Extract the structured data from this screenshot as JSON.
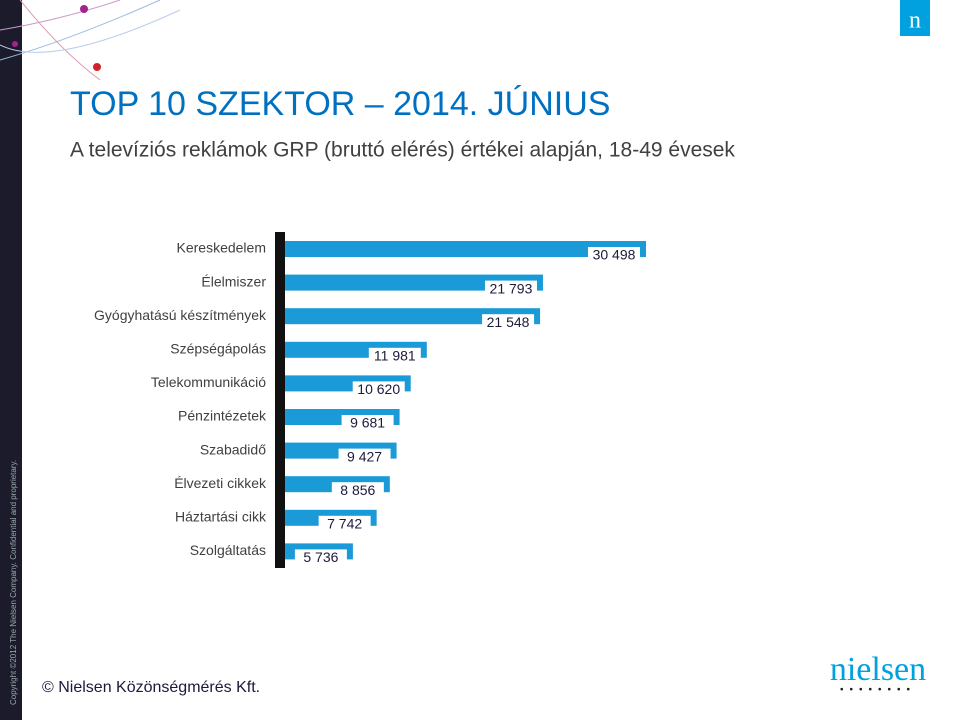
{
  "chart_data": {
    "type": "bar",
    "orientation": "horizontal",
    "title": "TOP 10 SZEKTOR – 2014. JÚNIUS",
    "subtitle": "A televíziós reklámok GRP (bruttó elérés) értékei alapján, 18-49 évesek",
    "categories": [
      "Kereskedelem",
      "Élelmiszer",
      "Gyógyhatású készítmények",
      "Szépségápolás",
      "Telekommunikáció",
      "Pénzintézetek",
      "Szabadidő",
      "Élvezeti cikkek",
      "Háztartási cikk",
      "Szolgáltatás"
    ],
    "values": [
      30498,
      21793,
      21548,
      11981,
      10620,
      9681,
      9427,
      8856,
      7742,
      5736
    ],
    "value_labels": [
      "30 498",
      "21 793",
      "21 548",
      "11 981",
      "10 620",
      "9 681",
      "9 427",
      "8 856",
      "7 742",
      "5 736"
    ],
    "color": "#1a9ad6"
  },
  "footer": "© Nielsen Közönségmérés Kft.",
  "copyright": "Copyright ©2012 The Nielsen Company. Confidential and proprietary.",
  "logo": "nielsen",
  "corner_logo": "n"
}
